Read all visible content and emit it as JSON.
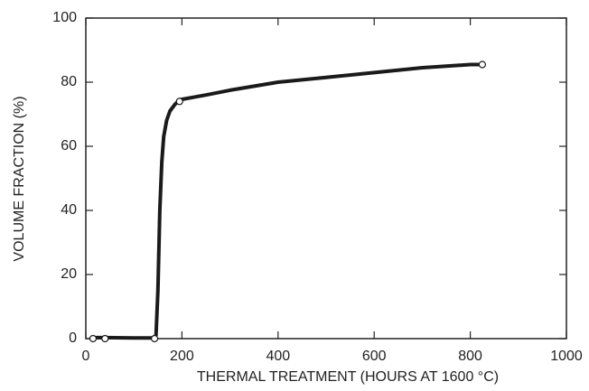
{
  "chart_data": {
    "type": "line",
    "xlabel": "THERMAL TREATMENT (HOURS AT 1600 °C)",
    "ylabel": "VOLUME FRACTION (%)",
    "x": [
      15,
      40,
      100,
      140,
      146,
      150,
      154,
      158,
      162,
      168,
      175,
      185,
      195,
      250,
      300,
      400,
      500,
      600,
      700,
      800,
      825
    ],
    "y": [
      0.3,
      0.3,
      0.2,
      0.2,
      1,
      15,
      40,
      55,
      63,
      68,
      71,
      73,
      74.5,
      76,
      77.5,
      80,
      81.5,
      83,
      84.5,
      85.5,
      85.5
    ],
    "color": "#1a1a1a",
    "points": {
      "x": [
        15,
        40,
        143,
        195,
        825
      ],
      "y": [
        0,
        0,
        0,
        74,
        85.5
      ]
    },
    "xlim": [
      0,
      1000
    ],
    "xticks": [
      0,
      200,
      400,
      600,
      800,
      1000
    ],
    "ylim": [
      0,
      100
    ],
    "yticks": [
      0,
      20,
      40,
      60,
      80,
      100
    ]
  }
}
